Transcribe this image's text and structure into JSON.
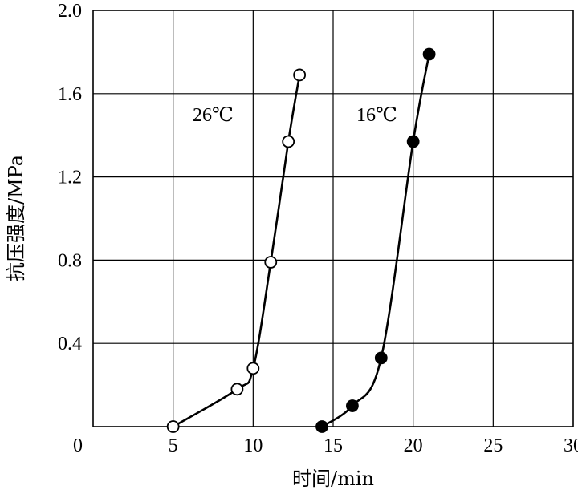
{
  "chart_data": {
    "type": "line",
    "title": "",
    "xlabel": "时间/min",
    "ylabel": "抗压强度/MPa",
    "xlim": [
      0,
      30
    ],
    "ylim": [
      0,
      2.0
    ],
    "x_ticks": [
      5,
      10,
      15,
      20,
      25,
      30
    ],
    "x_tick_labels": [
      "5",
      "10",
      "15",
      "20",
      "25",
      "30"
    ],
    "y_ticks": [
      0.4,
      0.8,
      1.2,
      1.6,
      2.0
    ],
    "y_tick_labels": [
      "0.4",
      "0.8",
      "1.2",
      "1.6",
      "2.0"
    ],
    "origin_label": "0",
    "grid": true,
    "series": [
      {
        "name": "26℃",
        "marker": "open-circle",
        "color": "#000000",
        "points": [
          [
            5.0,
            0.0
          ],
          [
            9.0,
            0.18
          ],
          [
            10.0,
            0.28
          ],
          [
            11.1,
            0.79
          ],
          [
            12.2,
            1.37
          ],
          [
            12.9,
            1.69
          ]
        ]
      },
      {
        "name": "16℃",
        "marker": "filled-circle",
        "color": "#000000",
        "points": [
          [
            14.3,
            0.0
          ],
          [
            16.2,
            0.1
          ],
          [
            18.0,
            0.33
          ],
          [
            20.0,
            1.37
          ],
          [
            21.0,
            1.79
          ]
        ]
      }
    ]
  }
}
